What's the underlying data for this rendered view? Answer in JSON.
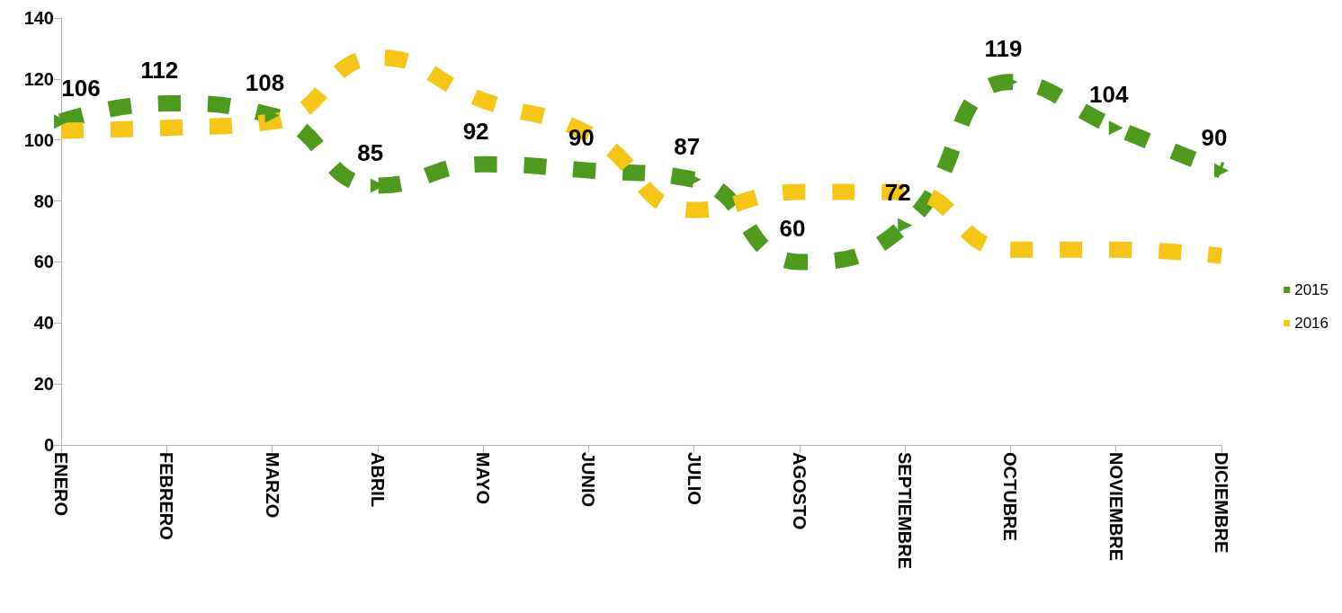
{
  "chart_data": {
    "type": "line",
    "categories": [
      "ENERO",
      "FEBRERO",
      "MARZO",
      "ABRIL",
      "MAYO",
      "JUNIO",
      "JULIO",
      "AGOSTO",
      "SEPTIEMBRE",
      "OCTUBRE",
      "NOVIEMBRE",
      "DICIEMBRE"
    ],
    "series": [
      {
        "name": "2015",
        "color": "#4e9a1f",
        "values": [
          106,
          112,
          108,
          85,
          92,
          90,
          87,
          60,
          72,
          119,
          104,
          90
        ],
        "data_labels": true,
        "marker": "triangle"
      },
      {
        "name": "2016",
        "color": "#f5c518",
        "values": [
          103,
          104,
          106,
          127,
          113,
          102,
          77,
          83,
          83,
          64,
          64,
          62
        ]
      }
    ],
    "ylim": [
      0,
      140
    ],
    "yticks": [
      0,
      20,
      40,
      60,
      80,
      100,
      120,
      140
    ],
    "grid": false,
    "legend": "right",
    "line_style": "dashed"
  }
}
